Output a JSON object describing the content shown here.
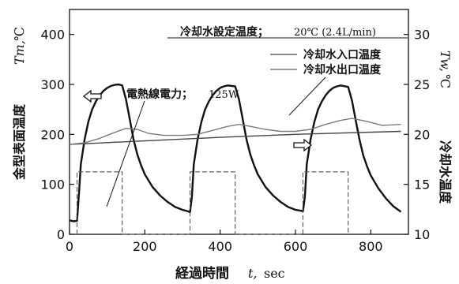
{
  "chart_data": {
    "type": "line",
    "x_axis": {
      "label": "経過時間",
      "symbol": "t,",
      "unit": "sec",
      "range": [
        0,
        900
      ],
      "ticks": [
        0,
        200,
        400,
        600,
        800
      ],
      "tick_labels": [
        "0",
        "200",
        "400",
        "600",
        "800"
      ]
    },
    "y_left": {
      "label": "金型表面温度",
      "symbol": "Tm,",
      "unit": "℃",
      "range": [
        0,
        450
      ],
      "ticks": [
        0,
        100,
        200,
        300,
        400
      ],
      "tick_labels": [
        "0",
        "100",
        "200",
        "300",
        "400"
      ]
    },
    "y_right": {
      "label": "冷却水温度",
      "symbol": "Tw,",
      "unit": "℃",
      "range": [
        10,
        32.5
      ],
      "ticks": [
        10,
        15,
        20,
        25,
        30
      ],
      "tick_labels": [
        "10",
        "15",
        "20",
        "25",
        "30"
      ]
    },
    "grid": false,
    "annotations": {
      "setting": "冷却水設定温度；",
      "setting_value": "20℃ (2.4L/min)",
      "power": "電熱線電力；",
      "power_value": "125W"
    },
    "legend": {
      "placement": "top-right",
      "entries": [
        "冷却水入口温度",
        "冷却水出口温度"
      ]
    },
    "series": [
      {
        "name": "mold_surface",
        "axis": "left",
        "color": "#111111",
        "points": [
          [
            0,
            28
          ],
          [
            10,
            26
          ],
          [
            20,
            27
          ],
          [
            25,
            80
          ],
          [
            30,
            140
          ],
          [
            40,
            190
          ],
          [
            50,
            225
          ],
          [
            60,
            250
          ],
          [
            70,
            266
          ],
          [
            80,
            278
          ],
          [
            90,
            287
          ],
          [
            100,
            293
          ],
          [
            110,
            297
          ],
          [
            120,
            299
          ],
          [
            130,
            300
          ],
          [
            140,
            298
          ],
          [
            150,
            270
          ],
          [
            160,
            230
          ],
          [
            170,
            190
          ],
          [
            180,
            160
          ],
          [
            190,
            138
          ],
          [
            200,
            120
          ],
          [
            220,
            95
          ],
          [
            240,
            78
          ],
          [
            260,
            65
          ],
          [
            280,
            55
          ],
          [
            300,
            49
          ],
          [
            315,
            46
          ],
          [
            320,
            44
          ],
          [
            325,
            75
          ],
          [
            330,
            140
          ],
          [
            340,
            190
          ],
          [
            350,
            224
          ],
          [
            360,
            250
          ],
          [
            370,
            266
          ],
          [
            380,
            278
          ],
          [
            390,
            287
          ],
          [
            400,
            293
          ],
          [
            410,
            296
          ],
          [
            420,
            298
          ],
          [
            440,
            296
          ],
          [
            450,
            270
          ],
          [
            460,
            230
          ],
          [
            470,
            190
          ],
          [
            480,
            160
          ],
          [
            490,
            138
          ],
          [
            500,
            120
          ],
          [
            520,
            95
          ],
          [
            540,
            78
          ],
          [
            560,
            65
          ],
          [
            580,
            55
          ],
          [
            600,
            49
          ],
          [
            615,
            47
          ],
          [
            620,
            46
          ],
          [
            625,
            75
          ],
          [
            630,
            140
          ],
          [
            640,
            190
          ],
          [
            650,
            224
          ],
          [
            660,
            250
          ],
          [
            670,
            266
          ],
          [
            680,
            278
          ],
          [
            690,
            287
          ],
          [
            700,
            293
          ],
          [
            710,
            296
          ],
          [
            720,
            298
          ],
          [
            740,
            295
          ],
          [
            750,
            268
          ],
          [
            760,
            228
          ],
          [
            770,
            190
          ],
          [
            780,
            158
          ],
          [
            790,
            136
          ],
          [
            800,
            118
          ],
          [
            820,
            92
          ],
          [
            840,
            72
          ],
          [
            860,
            56
          ],
          [
            880,
            45
          ]
        ]
      },
      {
        "name": "冷却水入口温度",
        "axis": "right",
        "color": "#444444",
        "points": [
          [
            0,
            19.0
          ],
          [
            200,
            19.35
          ],
          [
            400,
            19.7
          ],
          [
            600,
            20.0
          ],
          [
            880,
            20.3
          ]
        ]
      },
      {
        "name": "冷却水出口温度",
        "axis": "right",
        "color": "#7a7a7a",
        "points": [
          [
            0,
            19.0
          ],
          [
            40,
            19.15
          ],
          [
            80,
            19.6
          ],
          [
            120,
            20.2
          ],
          [
            150,
            20.6
          ],
          [
            180,
            20.5
          ],
          [
            210,
            20.1
          ],
          [
            250,
            19.9
          ],
          [
            300,
            19.9
          ],
          [
            340,
            20.0
          ],
          [
            380,
            20.4
          ],
          [
            420,
            20.8
          ],
          [
            450,
            21.0
          ],
          [
            480,
            20.8
          ],
          [
            520,
            20.5
          ],
          [
            560,
            20.3
          ],
          [
            600,
            20.3
          ],
          [
            640,
            20.5
          ],
          [
            680,
            21.0
          ],
          [
            720,
            21.4
          ],
          [
            750,
            21.6
          ],
          [
            790,
            21.3
          ],
          [
            830,
            20.9
          ],
          [
            880,
            21.0
          ]
        ]
      },
      {
        "name": "電熱線電力",
        "axis": "left",
        "color": "#555555",
        "dashed": true,
        "points": [
          [
            20,
            0
          ],
          [
            20,
            125
          ],
          [
            140,
            125
          ],
          [
            140,
            0
          ],
          [
            320,
            0
          ],
          [
            320,
            125
          ],
          [
            440,
            125
          ],
          [
            440,
            0
          ],
          [
            620,
            0
          ],
          [
            620,
            125
          ],
          [
            740,
            125
          ],
          [
            740,
            0
          ]
        ]
      }
    ]
  }
}
